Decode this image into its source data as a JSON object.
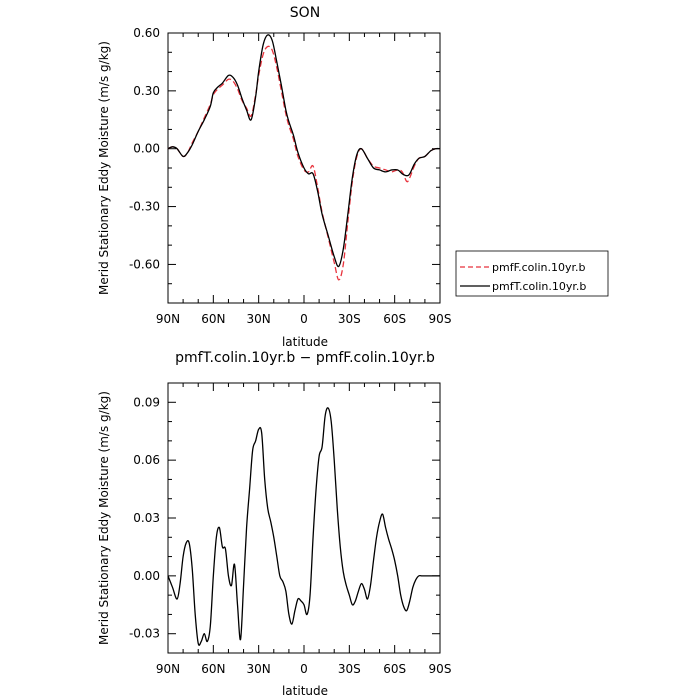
{
  "chart_data": [
    {
      "type": "line",
      "title": "SON",
      "xlabel": "latitude",
      "ylabel": "Merid Stationary Eddy Moisture (m/s g/kg)",
      "xlim": [
        90,
        -90
      ],
      "ylim": [
        -0.8,
        0.6
      ],
      "x_ticks": [
        90,
        60,
        30,
        0,
        -30,
        -60,
        -90
      ],
      "x_tick_labels": [
        "90N",
        "60N",
        "30N",
        "0",
        "30S",
        "60S",
        "90S"
      ],
      "y_ticks": [
        0.6,
        0.3,
        0.0,
        -0.3,
        -0.6
      ],
      "y_tick_labels": [
        "0.60",
        "0.30",
        "0.00",
        "-0.30",
        "-0.60"
      ],
      "legend": "right",
      "series": [
        {
          "name": "pmfF.colin.10yr.b",
          "color": "#e8323c",
          "dash": "dashed",
          "x": [
            90,
            87,
            84,
            80,
            77,
            74,
            70,
            66,
            62,
            60,
            57,
            54,
            50,
            47,
            44,
            41,
            38,
            35,
            32,
            30,
            27,
            24,
            21,
            18,
            15,
            12,
            10,
            7,
            4,
            0,
            -3,
            -6,
            -9,
            -12,
            -16,
            -20,
            -23,
            -26,
            -29,
            -32,
            -35,
            -38,
            -42,
            -46,
            -50,
            -54,
            -58,
            -62,
            -65,
            -68,
            -70,
            -73,
            -76,
            -80,
            -84,
            -87,
            -90
          ],
          "y": [
            0.0,
            0.01,
            0.0,
            -0.04,
            -0.02,
            0.03,
            0.09,
            0.16,
            0.23,
            0.28,
            0.31,
            0.33,
            0.36,
            0.35,
            0.31,
            0.25,
            0.21,
            0.17,
            0.28,
            0.38,
            0.49,
            0.53,
            0.51,
            0.42,
            0.3,
            0.18,
            0.12,
            0.05,
            -0.04,
            -0.11,
            -0.12,
            -0.09,
            -0.2,
            -0.33,
            -0.46,
            -0.59,
            -0.68,
            -0.6,
            -0.38,
            -0.17,
            -0.04,
            0.0,
            -0.05,
            -0.09,
            -0.1,
            -0.11,
            -0.12,
            -0.11,
            -0.12,
            -0.17,
            -0.15,
            -0.09,
            -0.05,
            -0.04,
            -0.01,
            0.0,
            0.0
          ]
        },
        {
          "name": "pmfT.colin.10yr.b",
          "color": "#000000",
          "dash": "solid",
          "x": [
            90,
            87,
            84,
            80,
            77,
            74,
            70,
            66,
            62,
            60,
            57,
            54,
            50,
            47,
            44,
            41,
            38,
            35,
            32,
            30,
            27,
            24,
            21,
            18,
            15,
            12,
            10,
            7,
            4,
            0,
            -3,
            -6,
            -9,
            -12,
            -16,
            -20,
            -23,
            -26,
            -29,
            -32,
            -35,
            -38,
            -42,
            -46,
            -50,
            -54,
            -58,
            -62,
            -65,
            -68,
            -70,
            -73,
            -76,
            -80,
            -84,
            -87,
            -90
          ],
          "y": [
            0.0,
            0.01,
            0.0,
            -0.04,
            -0.02,
            0.02,
            0.09,
            0.15,
            0.22,
            0.29,
            0.32,
            0.34,
            0.38,
            0.37,
            0.33,
            0.26,
            0.2,
            0.15,
            0.27,
            0.4,
            0.54,
            0.59,
            0.56,
            0.45,
            0.33,
            0.2,
            0.14,
            0.07,
            -0.02,
            -0.1,
            -0.13,
            -0.13,
            -0.22,
            -0.34,
            -0.45,
            -0.56,
            -0.61,
            -0.52,
            -0.34,
            -0.15,
            -0.03,
            0.0,
            -0.05,
            -0.1,
            -0.11,
            -0.12,
            -0.11,
            -0.11,
            -0.13,
            -0.14,
            -0.13,
            -0.08,
            -0.05,
            -0.04,
            -0.01,
            0.0,
            0.0
          ]
        }
      ]
    },
    {
      "type": "line",
      "title": "pmfT.colin.10yr.b − pmfF.colin.10yr.b",
      "xlabel": "latitude",
      "ylabel": "Merid Stationary Eddy Moisture (m/s g/kg)",
      "xlim": [
        90,
        -90
      ],
      "ylim": [
        -0.04,
        0.1
      ],
      "x_ticks": [
        90,
        60,
        30,
        0,
        -30,
        -60,
        -90
      ],
      "x_tick_labels": [
        "90N",
        "60N",
        "30N",
        "0",
        "30S",
        "60S",
        "90S"
      ],
      "y_ticks": [
        0.09,
        0.06,
        0.03,
        0.0,
        -0.03
      ],
      "y_tick_labels": [
        "0.09",
        "0.06",
        "0.03",
        "0.00",
        "-0.03"
      ],
      "series": [
        {
          "name": "",
          "color": "#000000",
          "dash": "solid",
          "x": [
            90,
            87,
            84,
            82,
            80,
            78,
            76,
            74,
            72,
            70,
            68,
            66,
            64,
            62,
            60,
            58,
            56,
            54,
            52,
            50,
            48,
            46,
            44,
            42,
            40,
            38,
            36,
            34,
            32,
            30,
            28,
            26,
            24,
            22,
            20,
            18,
            16,
            14,
            12,
            10,
            8,
            6,
            4,
            2,
            0,
            -2,
            -4,
            -6,
            -8,
            -10,
            -12,
            -14,
            -16,
            -18,
            -20,
            -22,
            -24,
            -26,
            -28,
            -30,
            -32,
            -34,
            -36,
            -38,
            -40,
            -42,
            -44,
            -46,
            -48,
            -50,
            -52,
            -54,
            -56,
            -58,
            -60,
            -62,
            -64,
            -66,
            -68,
            -70,
            -72,
            -74,
            -76,
            -78,
            -80,
            -82,
            -84,
            -86,
            -88,
            -90
          ],
          "y": [
            0.0,
            -0.006,
            -0.012,
            -0.004,
            0.01,
            0.017,
            0.017,
            0.004,
            -0.02,
            -0.035,
            -0.034,
            -0.03,
            -0.034,
            -0.026,
            0.0,
            0.02,
            0.025,
            0.015,
            0.014,
            0.0,
            -0.005,
            0.006,
            -0.015,
            -0.033,
            -0.005,
            0.025,
            0.045,
            0.065,
            0.07,
            0.076,
            0.074,
            0.05,
            0.035,
            0.028,
            0.02,
            0.01,
            0.0,
            -0.003,
            -0.008,
            -0.02,
            -0.025,
            -0.018,
            -0.012,
            -0.013,
            -0.015,
            -0.02,
            -0.01,
            0.02,
            0.045,
            0.062,
            0.067,
            0.083,
            0.087,
            0.08,
            0.06,
            0.035,
            0.015,
            0.002,
            -0.005,
            -0.01,
            -0.015,
            -0.013,
            -0.008,
            -0.004,
            -0.007,
            -0.012,
            -0.005,
            0.008,
            0.02,
            0.028,
            0.032,
            0.025,
            0.019,
            0.014,
            0.008,
            0.0,
            -0.01,
            -0.016,
            -0.018,
            -0.013,
            -0.006,
            -0.002,
            0.0,
            0.0,
            0.0,
            0.0,
            0.0,
            0.0,
            0.0,
            0.0
          ]
        }
      ]
    }
  ]
}
